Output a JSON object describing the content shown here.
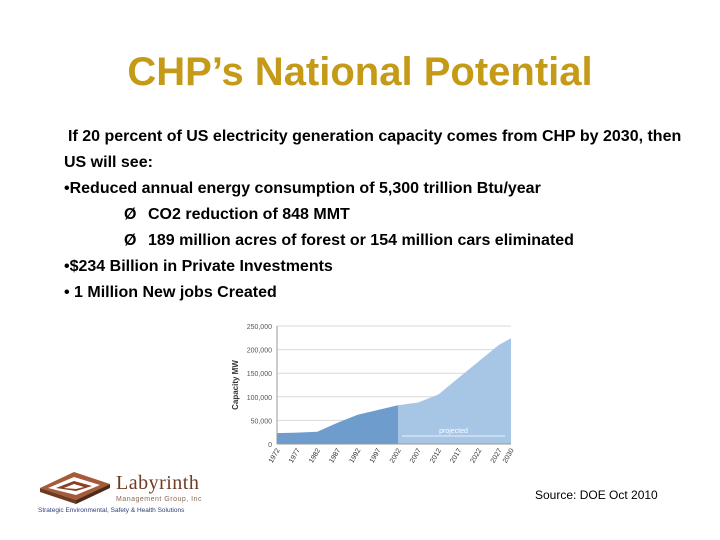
{
  "title": "CHP’s National Potential",
  "intro": "If 20 percent of US electricity generation capacity comes from CHP by 2030, then US will see:",
  "bullets": {
    "energy": "•Reduced annual energy consumption of 5,300 trillion Btu/year",
    "co2": "CO2 reduction of 848 MMT",
    "forest": "189 million acres of forest or 154 million cars eliminated",
    "investment": "•$234 Billion in Private Investments",
    "jobs": "• 1 Million New jobs Created"
  },
  "arrow_glyph": "Ø",
  "chart_data": {
    "type": "area",
    "title": "",
    "xlabel": "",
    "ylabel": "Capacity MW",
    "x": [
      1972,
      1977,
      1982,
      1987,
      1992,
      1997,
      2002,
      2007,
      2012,
      2017,
      2022,
      2027,
      2030
    ],
    "series": [
      {
        "name": "",
        "values": [
          23000,
          24000,
          26000,
          45000,
          62000,
          72000,
          82000,
          null,
          null,
          null,
          null,
          null,
          null
        ]
      },
      {
        "name": "projected",
        "values": [
          null,
          null,
          null,
          null,
          null,
          null,
          null,
          88000,
          105000,
          140000,
          175000,
          210000,
          224000
        ]
      }
    ],
    "ylim": [
      0,
      250000
    ],
    "yticks": [
      "0",
      "50,000",
      "100,000",
      "150,000",
      "200,000",
      "250,000"
    ],
    "xticks": [
      "1972",
      "1977",
      "1982",
      "1987",
      "1992",
      "1997",
      "2002",
      "2007",
      "2012",
      "2017",
      "2022",
      "2027",
      "2030"
    ],
    "annotation": "projected",
    "grid": true,
    "colors": {
      "historical": "#6d9ccd",
      "projected": "#a7c5e5",
      "grid": "#d9d9d9"
    }
  },
  "source": "Source: DOE Oct 2010",
  "logo": {
    "name": "Labyrinth",
    "subtitle": "Management Group, Inc",
    "tagline": "Strategic Environmental, Safety & Health Solutions"
  },
  "colors": {
    "title": "#c49a17"
  }
}
